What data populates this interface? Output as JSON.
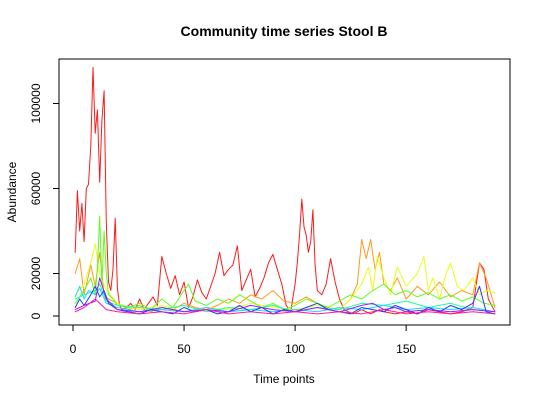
{
  "chart_data": {
    "type": "line",
    "title": "Community time series Stool B",
    "xlabel": "Time points",
    "ylabel": "Abundance",
    "xlim": [
      0,
      190
    ],
    "ylim": [
      0,
      120000
    ],
    "x_ticks": [
      0,
      50,
      100,
      150
    ],
    "y_ticks": [
      0,
      20000,
      60000,
      100000
    ],
    "grid": false,
    "legend": "none",
    "series": [
      {
        "color": "#ff1a1a",
        "x": [
          1,
          2,
          3,
          4,
          5,
          6,
          7,
          8,
          9,
          10,
          11,
          12,
          13,
          14,
          15,
          16,
          17,
          18,
          19,
          20,
          21,
          22,
          24,
          26,
          28,
          30,
          32,
          34,
          36,
          38,
          40,
          42,
          44,
          46,
          48,
          50,
          52,
          54,
          56,
          58,
          60,
          62,
          64,
          66,
          68,
          70,
          72,
          74,
          76,
          78,
          80,
          82,
          84,
          86,
          88,
          90,
          92,
          94,
          96,
          98,
          100,
          101,
          102,
          103,
          104,
          105,
          106,
          107,
          108,
          109,
          110,
          112,
          114,
          116,
          118,
          120,
          122,
          124,
          126,
          128,
          130,
          132,
          134,
          136,
          138,
          140,
          145,
          150,
          155,
          160,
          165,
          170,
          175,
          180,
          183,
          185,
          187,
          190
        ],
        "y": [
          30000,
          59000,
          40000,
          53000,
          35000,
          60000,
          62000,
          80000,
          117000,
          86000,
          97000,
          63000,
          92000,
          106000,
          44000,
          16000,
          12000,
          22000,
          46000,
          13000,
          5000,
          3000,
          4000,
          6000,
          3000,
          8000,
          3000,
          6000,
          9000,
          5000,
          28000,
          20000,
          13000,
          19000,
          10000,
          16000,
          4000,
          9000,
          17000,
          11000,
          8000,
          14000,
          20000,
          30000,
          19000,
          22000,
          24000,
          33000,
          12000,
          17000,
          22000,
          9000,
          13000,
          18000,
          25000,
          29000,
          22000,
          15000,
          5000,
          2000,
          15000,
          25000,
          38000,
          55000,
          42000,
          38000,
          30000,
          35000,
          50000,
          24000,
          12000,
          10000,
          15000,
          27000,
          16000,
          8000,
          3000,
          2000,
          1000,
          2000,
          3000,
          2000,
          1000,
          2000,
          3000,
          2000,
          1000,
          2000,
          1000,
          3000,
          2000,
          1000,
          2000,
          4000,
          25000,
          22000,
          8000,
          2000
        ]
      },
      {
        "color": "#ff9a1a",
        "x": [
          1,
          3,
          5,
          8,
          10,
          12,
          14,
          16,
          20,
          25,
          30,
          35,
          40,
          45,
          50,
          55,
          60,
          65,
          70,
          75,
          80,
          85,
          90,
          95,
          100,
          105,
          110,
          115,
          120,
          125,
          128,
          130,
          132,
          134,
          136,
          138,
          140,
          143,
          146,
          150,
          155,
          160,
          165,
          170,
          175,
          180,
          183,
          186,
          190
        ],
        "y": [
          20000,
          27000,
          10000,
          24000,
          14000,
          30000,
          10000,
          8000,
          6000,
          3000,
          5000,
          2000,
          4000,
          3000,
          6000,
          4000,
          3000,
          5000,
          8000,
          6000,
          10000,
          8000,
          12000,
          7000,
          6000,
          9000,
          6000,
          4000,
          3000,
          8000,
          15000,
          36000,
          27000,
          36000,
          22000,
          30000,
          15000,
          12000,
          18000,
          8000,
          14000,
          10000,
          16000,
          9000,
          12000,
          10000,
          25000,
          18000,
          4000
        ]
      },
      {
        "color": "#e6ff1a",
        "x": [
          1,
          5,
          8,
          10,
          12,
          15,
          20,
          25,
          30,
          40,
          50,
          60,
          70,
          80,
          90,
          100,
          110,
          120,
          125,
          130,
          133,
          135,
          137,
          140,
          143,
          146,
          150,
          155,
          158,
          160,
          162,
          165,
          168,
          170,
          173,
          176,
          180,
          183,
          186,
          190
        ],
        "y": [
          10000,
          15000,
          25000,
          34000,
          20000,
          12000,
          6000,
          4000,
          3000,
          5000,
          2000,
          4000,
          3000,
          6000,
          4000,
          3000,
          5000,
          3000,
          8000,
          15000,
          23000,
          12000,
          28000,
          18000,
          10000,
          23000,
          14000,
          20000,
          28000,
          12000,
          18000,
          8000,
          20000,
          25000,
          14000,
          12000,
          18000,
          10000,
          12000,
          11000
        ]
      },
      {
        "color": "#5dff1a",
        "x": [
          1,
          5,
          8,
          10,
          11,
          12,
          13,
          14,
          15,
          16,
          18,
          20,
          25,
          30,
          35,
          40,
          45,
          50,
          52,
          55,
          60,
          65,
          70,
          75,
          80,
          85,
          90,
          95,
          100,
          105,
          110,
          115,
          120,
          125,
          130,
          135,
          140,
          145,
          150,
          155,
          160,
          165,
          170,
          175,
          180,
          185,
          190
        ],
        "y": [
          6000,
          12000,
          18000,
          10000,
          22000,
          47000,
          15000,
          40000,
          20000,
          10000,
          8000,
          5000,
          4000,
          6000,
          3000,
          8000,
          4000,
          12000,
          15000,
          7000,
          5000,
          8000,
          6000,
          10000,
          7000,
          4000,
          6000,
          3000,
          5000,
          8000,
          6000,
          4000,
          7000,
          10000,
          8000,
          12000,
          15000,
          10000,
          12000,
          9000,
          11000,
          8000,
          10000,
          7000,
          9000,
          6000,
          5000
        ]
      },
      {
        "color": "#1aff9a",
        "x": [
          1,
          5,
          10,
          12,
          15,
          20,
          30,
          40,
          50,
          60,
          70,
          80,
          90,
          100,
          110,
          120,
          130,
          140,
          150,
          160,
          170,
          180,
          190
        ],
        "y": [
          8000,
          10000,
          12000,
          15000,
          7000,
          5000,
          4000,
          3000,
          5000,
          2000,
          4000,
          3000,
          5000,
          2000,
          4000,
          3000,
          6000,
          5000,
          7000,
          4000,
          6000,
          3000,
          2000
        ]
      },
      {
        "color": "#1ad6ff",
        "x": [
          1,
          3,
          5,
          7,
          10,
          12,
          15,
          20,
          25,
          30,
          40,
          50,
          60,
          70,
          80,
          90,
          100,
          110,
          120,
          130,
          140,
          150,
          160,
          170,
          180,
          190
        ],
        "y": [
          9000,
          14000,
          8000,
          12000,
          10000,
          13000,
          6000,
          4000,
          3000,
          2000,
          3000,
          2000,
          4000,
          2000,
          3000,
          2000,
          3000,
          2000,
          4000,
          3000,
          5000,
          3000,
          4000,
          3000,
          4000,
          2000
        ]
      },
      {
        "color": "#1a3dff",
        "x": [
          1,
          3,
          5,
          8,
          10,
          12,
          14,
          16,
          20,
          25,
          30,
          35,
          40,
          45,
          50,
          55,
          60,
          65,
          70,
          75,
          80,
          85,
          90,
          95,
          100,
          105,
          110,
          115,
          120,
          125,
          130,
          135,
          140,
          145,
          150,
          155,
          160,
          165,
          170,
          175,
          180,
          183,
          186,
          190
        ],
        "y": [
          4000,
          8000,
          5000,
          10000,
          14000,
          9000,
          12000,
          6000,
          3000,
          2000,
          1000,
          3000,
          2000,
          1000,
          4000,
          2000,
          3000,
          1000,
          2000,
          5000,
          2000,
          4000,
          1000,
          3000,
          2000,
          4000,
          6000,
          3000,
          2000,
          1000,
          4000,
          3000,
          2000,
          5000,
          3000,
          1000,
          4000,
          2000,
          5000,
          3000,
          6000,
          14000,
          2000,
          1000
        ]
      },
      {
        "color": "#9a1aff",
        "x": [
          1,
          5,
          10,
          12,
          15,
          20,
          30,
          40,
          50,
          60,
          70,
          80,
          90,
          100,
          110,
          120,
          130,
          135,
          140,
          145,
          150,
          160,
          170,
          180,
          190
        ],
        "y": [
          3000,
          5000,
          7000,
          18000,
          8000,
          3000,
          2000,
          4000,
          2000,
          3000,
          2000,
          5000,
          3000,
          2000,
          4000,
          2000,
          5000,
          6000,
          3000,
          4000,
          2000,
          3000,
          2000,
          3000,
          2000
        ]
      },
      {
        "color": "#ff1a9a",
        "x": [
          1,
          5,
          10,
          15,
          20,
          30,
          40,
          50,
          60,
          70,
          80,
          90,
          100,
          110,
          120,
          130,
          140,
          150,
          160,
          170,
          180,
          190
        ],
        "y": [
          2000,
          4000,
          8000,
          3000,
          2000,
          1000,
          2000,
          1000,
          3000,
          1000,
          2000,
          1000,
          2000,
          1000,
          2000,
          1000,
          3000,
          1000,
          2000,
          1000,
          2000,
          1000
        ]
      }
    ]
  }
}
